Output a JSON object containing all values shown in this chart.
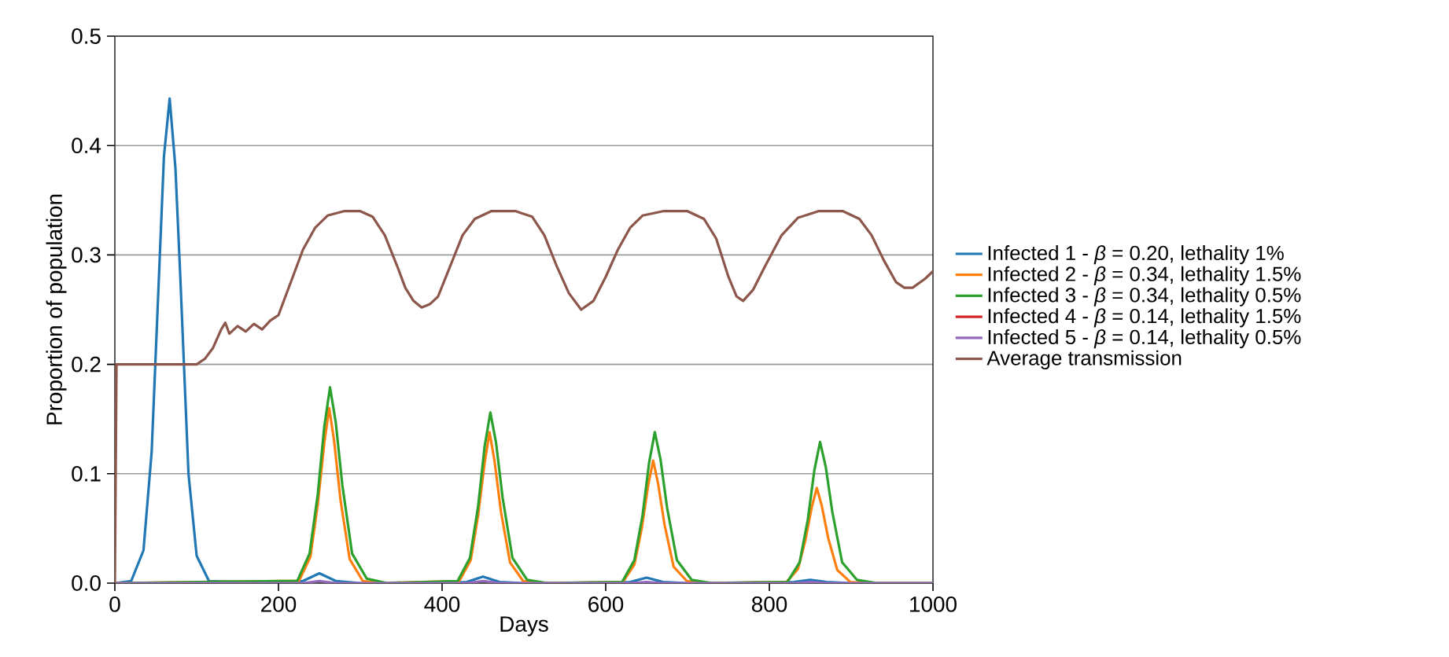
{
  "chart_data": {
    "type": "line",
    "xlabel": "Days",
    "ylabel": "Proportion of population",
    "xlim": [
      0,
      1000
    ],
    "ylim": [
      0,
      0.5
    ],
    "xticks": [
      0,
      200,
      400,
      600,
      800,
      1000
    ],
    "yticks": [
      {
        "value": 0,
        "label": "0.0"
      },
      0.1,
      0.2,
      0.3,
      0.4,
      0.5
    ],
    "grid": "y",
    "legend": "right",
    "line_style": "solid",
    "series": [
      {
        "name": "Infected 1 - *β* = 0.20, lethality 1%",
        "color": "#1f77b4",
        "x": [
          0,
          20,
          35,
          45,
          55,
          60,
          67,
          74,
          80,
          90,
          100,
          115,
          200,
          230,
          250,
          270,
          300,
          430,
          450,
          470,
          500,
          630,
          650,
          670,
          700,
          830,
          850,
          870,
          900,
          1000
        ],
        "values": [
          0,
          0.002,
          0.03,
          0.12,
          0.3,
          0.39,
          0.443,
          0.38,
          0.28,
          0.1,
          0.025,
          0.002,
          0,
          0.002,
          0.009,
          0.002,
          0,
          0.001,
          0.006,
          0.001,
          0,
          0.001,
          0.005,
          0.001,
          0,
          0.001,
          0.003,
          0.001,
          0,
          0
        ]
      },
      {
        "name": "Infected 2 - *β* = 0.34, lethality 1.5%",
        "color": "#ff7f0e",
        "x": [
          0,
          225,
          239,
          248,
          256,
          262,
          268,
          276,
          287,
          303,
          325,
          421,
          435,
          444,
          452,
          458,
          464,
          472,
          483,
          499,
          521,
          621,
          635,
          644,
          652,
          658,
          664,
          672,
          683,
          699,
          721,
          821,
          835,
          844,
          852,
          858,
          864,
          872,
          883,
          899,
          921,
          1000
        ],
        "values": [
          0,
          0.002,
          0.024,
          0.072,
          0.128,
          0.16,
          0.13,
          0.075,
          0.022,
          0.002,
          0,
          0.002,
          0.021,
          0.062,
          0.11,
          0.138,
          0.112,
          0.065,
          0.019,
          0.002,
          0,
          0.001,
          0.017,
          0.05,
          0.09,
          0.112,
          0.091,
          0.053,
          0.015,
          0.002,
          0,
          0.001,
          0.013,
          0.039,
          0.07,
          0.087,
          0.071,
          0.041,
          0.012,
          0.001,
          0,
          0
        ]
      },
      {
        "name": "Infected 3 - *β* = 0.34, lethality 0.5%",
        "color": "#2ca02c",
        "x": [
          0,
          223,
          238,
          248,
          256,
          263,
          270,
          278,
          290,
          308,
          333,
          419,
          434,
          444,
          452,
          459,
          466,
          474,
          486,
          504,
          529,
          620,
          635,
          645,
          653,
          660,
          667,
          675,
          687,
          705,
          730,
          822,
          837,
          847,
          855,
          862,
          869,
          877,
          889,
          907,
          932,
          1000
        ],
        "values": [
          0,
          0.002,
          0.027,
          0.081,
          0.143,
          0.179,
          0.147,
          0.09,
          0.027,
          0.004,
          0,
          0.002,
          0.023,
          0.07,
          0.125,
          0.156,
          0.128,
          0.078,
          0.023,
          0.003,
          0,
          0.001,
          0.021,
          0.062,
          0.11,
          0.138,
          0.113,
          0.069,
          0.021,
          0.003,
          0,
          0.001,
          0.019,
          0.058,
          0.103,
          0.129,
          0.106,
          0.065,
          0.019,
          0.003,
          0,
          0
        ]
      },
      {
        "name": "Infected 4 - *β* = 0.14, lethality 1.5%",
        "color": "#d62728"
      },
      {
        "name": "Infected 5 - *β* = 0.14, lethality 0.5%",
        "color": "#9467bd",
        "x": [
          0,
          230,
          250,
          270,
          300,
          430,
          450,
          470,
          500,
          630,
          650,
          670,
          700,
          830,
          850,
          870,
          1000
        ],
        "values": [
          0,
          0,
          0.002,
          0,
          0,
          0,
          0.002,
          0,
          0,
          0,
          0.001,
          0,
          0,
          0,
          0.001,
          0,
          0
        ]
      },
      {
        "name": "Average transmission",
        "color": "#8c564b",
        "x": [
          0,
          2,
          100,
          110,
          120,
          130,
          135,
          140,
          150,
          160,
          170,
          180,
          190,
          200,
          205,
          215,
          230,
          245,
          260,
          280,
          300,
          315,
          330,
          345,
          355,
          365,
          375,
          385,
          395,
          410,
          425,
          440,
          460,
          490,
          510,
          525,
          540,
          555,
          570,
          585,
          600,
          615,
          630,
          645,
          670,
          700,
          720,
          735,
          750,
          760,
          768,
          780,
          795,
          815,
          835,
          860,
          890,
          910,
          925,
          940,
          955,
          965,
          975,
          990,
          1000
        ],
        "values": [
          0,
          0.2,
          0.2,
          0.205,
          0.215,
          0.232,
          0.238,
          0.228,
          0.235,
          0.23,
          0.237,
          0.232,
          0.24,
          0.245,
          0.255,
          0.275,
          0.305,
          0.325,
          0.336,
          0.34,
          0.34,
          0.335,
          0.318,
          0.29,
          0.27,
          0.258,
          0.252,
          0.255,
          0.262,
          0.29,
          0.318,
          0.333,
          0.34,
          0.34,
          0.335,
          0.318,
          0.29,
          0.265,
          0.25,
          0.258,
          0.28,
          0.305,
          0.325,
          0.336,
          0.34,
          0.34,
          0.333,
          0.315,
          0.28,
          0.262,
          0.258,
          0.268,
          0.29,
          0.318,
          0.334,
          0.34,
          0.34,
          0.333,
          0.318,
          0.295,
          0.275,
          0.27,
          0.27,
          0.278,
          0.285
        ]
      }
    ]
  }
}
